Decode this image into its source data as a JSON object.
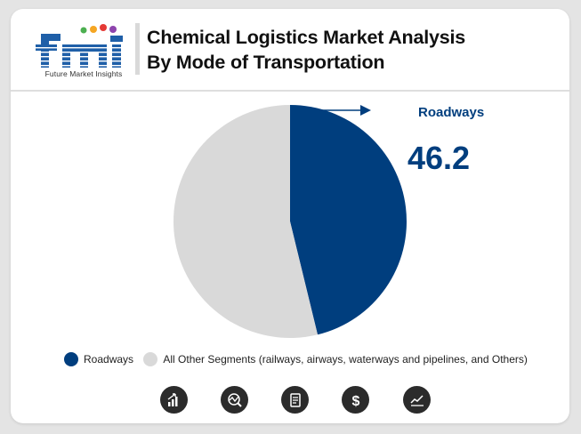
{
  "brand": {
    "logo_letters": "fmi",
    "tagline": "Future Market Insights"
  },
  "title": {
    "line1": "Chemical Logistics Market Analysis",
    "line2": "By Mode of Transportation"
  },
  "chart_data": {
    "type": "pie",
    "series": [
      {
        "name": "Roadways",
        "value": 46.2,
        "color": "#003e7e"
      },
      {
        "name": "All Other Segments (railways, airways, waterways and pipelines, and Others)",
        "value": 53.8,
        "color": "#d9d9d9"
      }
    ],
    "annotation": {
      "label": "Roadways",
      "value": "46.2"
    },
    "legend_position": "bottom"
  },
  "footer_icons": [
    "growth-chart-icon",
    "trend-analysis-icon",
    "report-document-icon",
    "dollar-icon",
    "line-chart-icon"
  ]
}
